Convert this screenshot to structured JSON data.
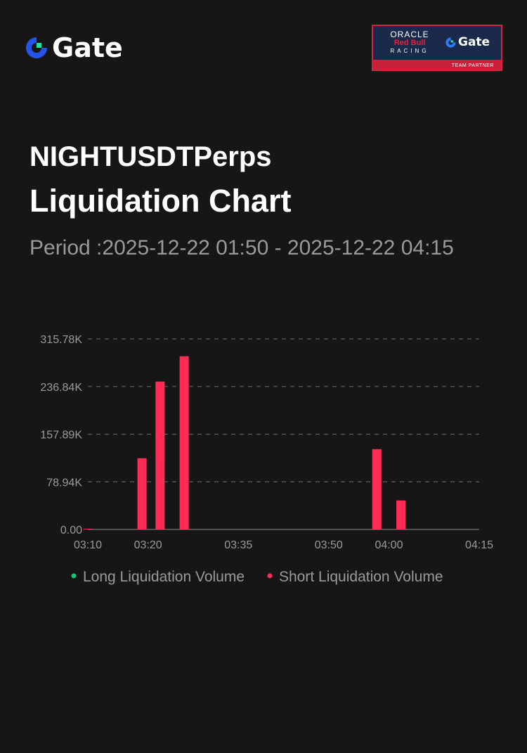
{
  "brand": {
    "name": "Gate"
  },
  "partner": {
    "oracle": "ORACLE",
    "redbull": "Red Bull",
    "racing": "RACING",
    "gate": "Gate",
    "label": "TEAM PARTNER"
  },
  "header": {
    "symbol": "NIGHTUSDTPerps",
    "title": "Liquidation Chart",
    "period": "Period :2025-12-22 01:50 - 2025-12-22 04:15"
  },
  "colors": {
    "long": "#19c37d",
    "short": "#ff2d55",
    "grid": "#6a6a6a",
    "axis_text": "#9a9a9a"
  },
  "chart_data": {
    "type": "bar",
    "x_ticks": [
      "03:10",
      "03:20",
      "03:35",
      "03:50",
      "04:00",
      "04:15"
    ],
    "y_ticks": [
      "0.00",
      "78.94K",
      "157.89K",
      "236.84K",
      "315.78K"
    ],
    "ylim": [
      0,
      315780
    ],
    "grid": true,
    "legend_position": "bottom",
    "series": [
      {
        "name": "Long Liquidation Volume",
        "color": "#19c37d",
        "points": []
      },
      {
        "name": "Short Liquidation Volume",
        "color": "#ff2d55",
        "points": [
          {
            "x": "03:10",
            "value": 900
          },
          {
            "x": "03:19",
            "value": 118000
          },
          {
            "x": "03:22",
            "value": 245000
          },
          {
            "x": "03:26",
            "value": 287000
          },
          {
            "x": "03:58",
            "value": 133000
          },
          {
            "x": "04:02",
            "value": 48000
          }
        ]
      }
    ]
  }
}
